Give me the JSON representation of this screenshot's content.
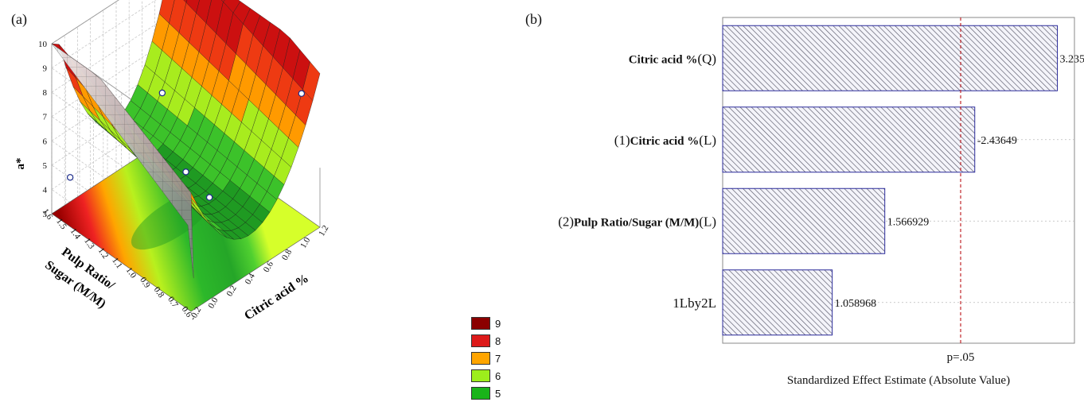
{
  "panel_a_label": "(a)",
  "panel_b_label": "(b)",
  "legend": [
    {
      "label": "9",
      "color": "#8b0000"
    },
    {
      "label": "8",
      "color": "#dd1a1a"
    },
    {
      "label": "7",
      "color": "#ffa500"
    },
    {
      "label": "6",
      "color": "#9dee1c"
    },
    {
      "label": "5",
      "color": "#1ab41a"
    }
  ],
  "chart_data": [
    {
      "type": "surface",
      "zlabel": "a*",
      "xlabel": "Citric acid %",
      "ylabel": "Pulp Ratio/ Sugar (M/M)",
      "zticks": [
        "10",
        "9",
        "8",
        "7",
        "6",
        "5",
        "4",
        "3"
      ],
      "xticks": [
        "-0.2",
        "0.0",
        "0.2",
        "0.4",
        "0.6",
        "0.8",
        "1.0",
        "1.2"
      ],
      "yticks": [
        "1.6",
        "1.5",
        "1.4",
        "1.3",
        "1.2",
        "1.1",
        "1.0",
        "0.9",
        "0.8",
        "0.7",
        "0.6"
      ],
      "xlim": [
        -0.2,
        1.2
      ],
      "ylim": [
        0.6,
        1.6
      ],
      "zlim": [
        3,
        10
      ],
      "points": [
        {
          "x": 0.0,
          "y": 1.6,
          "z": 7.2
        },
        {
          "x": 1.0,
          "y": 1.6,
          "z": 9.0
        },
        {
          "x": 0.5,
          "y": 1.1,
          "z": 5.0
        },
        {
          "x": 0.0,
          "y": 0.6,
          "z": 4.0
        },
        {
          "x": 1.0,
          "y": 0.6,
          "z": 5.0
        }
      ]
    },
    {
      "type": "bar",
      "orientation": "horizontal",
      "categories": [
        {
          "prefix": "",
          "bold": "Citric acid %",
          "suffix": "(Q)"
        },
        {
          "prefix": "(1)",
          "bold": "Citric acid %",
          "suffix": "(L)"
        },
        {
          "prefix": "(2)",
          "bold": "Pulp Ratio/Sugar (M/M)",
          "suffix": "(L)"
        },
        {
          "prefix": "",
          "bold": "",
          "suffix": "1Lby2L"
        }
      ],
      "values": [
        3.235,
        2.43649,
        1.566929,
        1.058968
      ],
      "value_labels": [
        "3.235",
        "-2.43649",
        "1.566929",
        "1.058968"
      ],
      "xlabel": "Standardized Effect Estimate (Absolute Value)",
      "reference_line": {
        "value": 2.3,
        "label": "p=.05"
      },
      "xlim": [
        0,
        3.4
      ]
    }
  ]
}
